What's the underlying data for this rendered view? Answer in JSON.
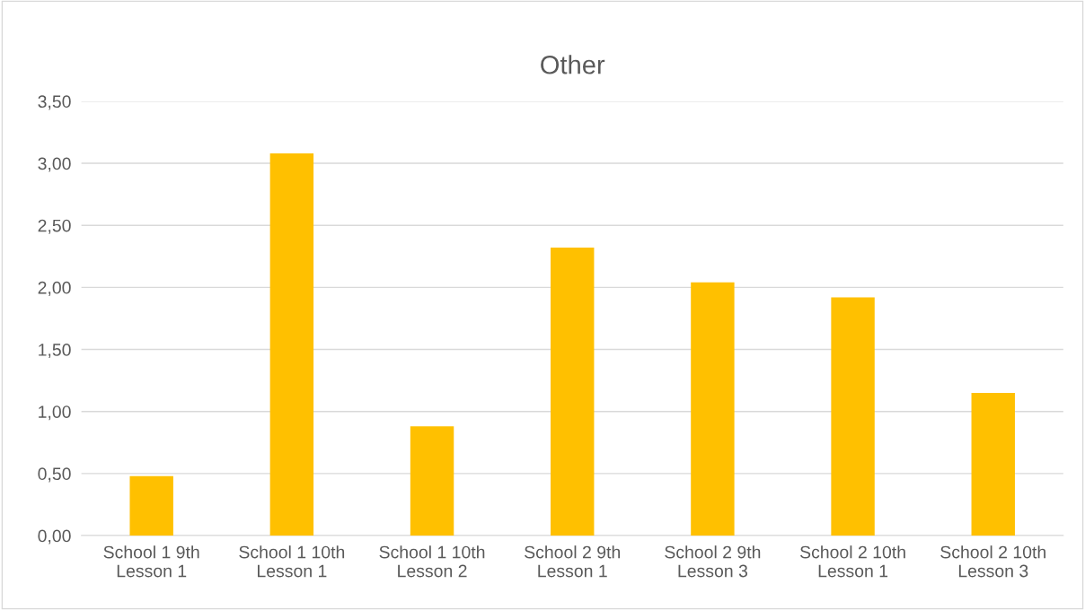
{
  "chart_data": {
    "type": "bar",
    "title": "Other",
    "categories": [
      "School 1 9th\nLesson 1",
      "School 1 10th\nLesson 1",
      "School 1 10th\nLesson 2",
      "School 2 9th\nLesson 1",
      "School 2 9th\nLesson 3",
      "School 2 10th\nLesson 1",
      "School 2 10th\nLesson 3"
    ],
    "values": [
      0.48,
      3.08,
      0.88,
      2.32,
      2.04,
      1.92,
      1.15
    ],
    "color": "#ffc000",
    "ylim": [
      0,
      3.5
    ],
    "yticks": [
      {
        "value": 0,
        "label": "0,00"
      },
      {
        "value": 0.5,
        "label": "0,50"
      },
      {
        "value": 1,
        "label": "1,00"
      },
      {
        "value": 1.5,
        "label": "1,50"
      },
      {
        "value": 2,
        "label": "2,00"
      },
      {
        "value": 2.5,
        "label": "2,50"
      },
      {
        "value": 3,
        "label": "3,00"
      },
      {
        "value": 3.5,
        "label": "3,50"
      }
    ],
    "grid": "y",
    "legend": false
  }
}
